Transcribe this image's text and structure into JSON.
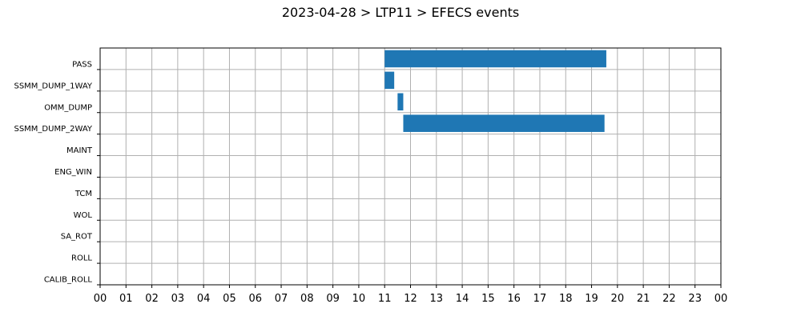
{
  "chart_data": {
    "type": "bar",
    "orientation": "horizontal-gantt",
    "title": "2023-04-28 > LTP11 > EFECS events",
    "xlabel": "",
    "ylabel": "",
    "xlim": [
      0,
      24
    ],
    "x_tick_labels": [
      "00",
      "01",
      "02",
      "03",
      "04",
      "05",
      "06",
      "07",
      "08",
      "09",
      "10",
      "11",
      "12",
      "13",
      "14",
      "15",
      "16",
      "17",
      "18",
      "19",
      "20",
      "21",
      "22",
      "23",
      "00"
    ],
    "categories": [
      "PASS",
      "SSMM_DUMP_1WAY",
      "OMM_DUMP",
      "SSMM_DUMP_2WAY",
      "MAINT",
      "ENG_WIN",
      "TCM",
      "WOL",
      "SA_ROT",
      "ROLL",
      "CALIB_ROLL"
    ],
    "events": [
      {
        "category": "PASS",
        "start": 11.0,
        "end": 19.57
      },
      {
        "category": "SSMM_DUMP_1WAY",
        "start": 11.0,
        "end": 11.37
      },
      {
        "category": "OMM_DUMP",
        "start": 11.5,
        "end": 11.72
      },
      {
        "category": "SSMM_DUMP_2WAY",
        "start": 11.72,
        "end": 19.5
      }
    ],
    "grid": true,
    "legend": "none",
    "bar_color": "#1f77b4"
  }
}
